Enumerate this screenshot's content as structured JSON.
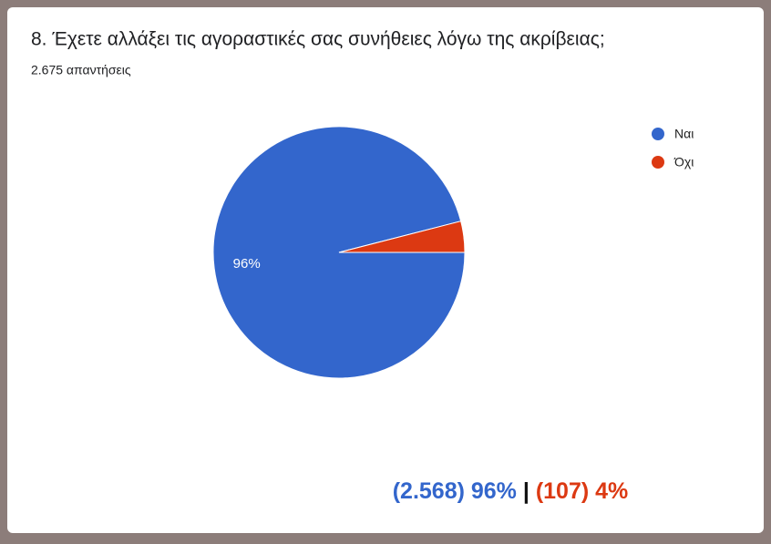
{
  "chart_data": {
    "type": "pie",
    "title": "8. Έχετε αλλάξει τις αγοραστικές σας συνήθειες λόγω της ακρίβειας;",
    "subtitle": "2.675 απαντήσεις",
    "categories": [
      "Ναι",
      "Όχι"
    ],
    "values": [
      96,
      4
    ],
    "value_labels": [
      "96%",
      null
    ],
    "colors": [
      "#3366cc",
      "#dc3912"
    ],
    "legend": "right",
    "annotations": [
      {
        "text": "(2.568) 96%",
        "color": "#3366cc"
      },
      {
        "text": "|",
        "color": "#111111"
      },
      {
        "text": "(107) 4%",
        "color": "#dc3912"
      }
    ]
  }
}
